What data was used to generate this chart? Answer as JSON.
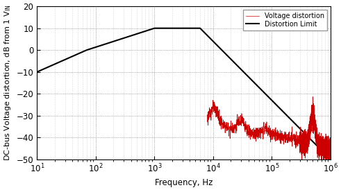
{
  "xlabel": "Frequency, Hz",
  "ylabel": "DC-bus Voltage distortion, dB from 1 V",
  "ylim": [
    -50,
    20
  ],
  "xlim": [
    10,
    1000000
  ],
  "yticks": [
    -50,
    -40,
    -30,
    -20,
    -10,
    0,
    10,
    20
  ],
  "limit_color": "#000000",
  "voltage_color": "#cc0000",
  "legend_voltage": "Voltage distortion",
  "legend_limit": "Distortion Limit",
  "limit_freqs": [
    10,
    70,
    1000,
    6000,
    1000000
  ],
  "limit_dBs": [
    -10,
    0,
    10,
    10,
    -50
  ],
  "background_color": "#ffffff",
  "grid_major_color": "#888888",
  "grid_minor_color": "#bbbbbb",
  "font_size": 8.5
}
